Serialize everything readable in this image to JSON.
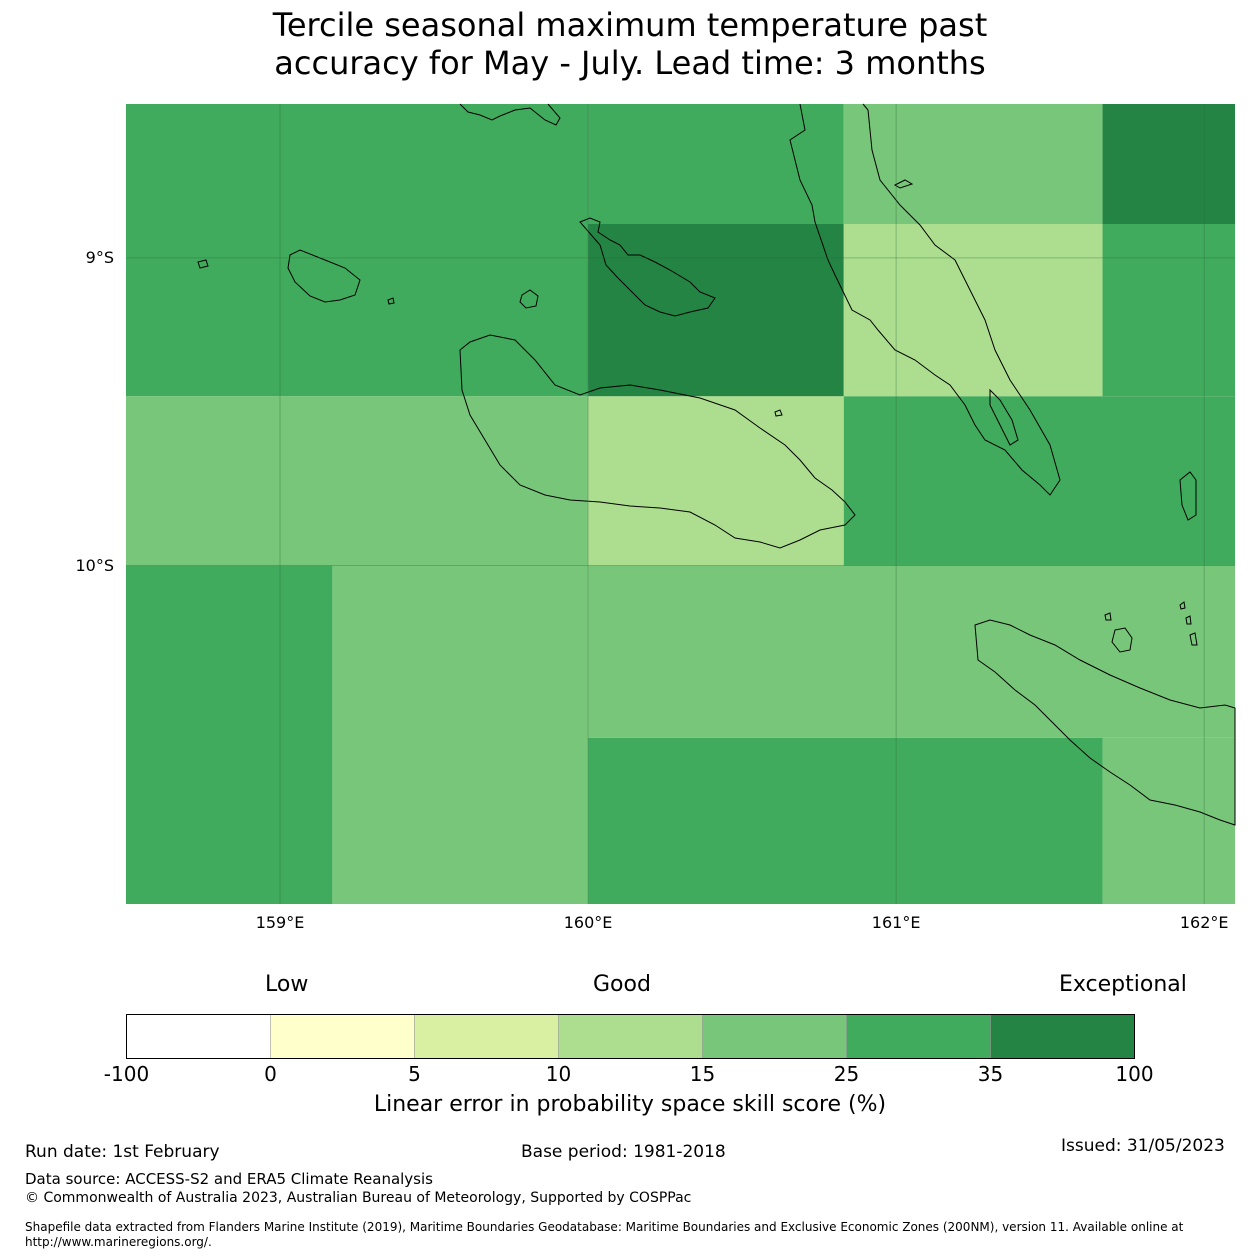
{
  "title": {
    "line1": "Tercile seasonal maximum temperature past",
    "line2": "accuracy for May - July. Lead time: 3 months"
  },
  "map": {
    "lat_labels": [
      "9°S",
      "10°S"
    ],
    "lon_labels": [
      "159°E",
      "160°E",
      "161°E",
      "162°E"
    ],
    "extent": {
      "lon_min": 158.5,
      "lon_max": 162.1,
      "lat_max": -8.5,
      "lat_min": -11.1
    },
    "skill_grid": [
      {
        "lon0": 158.5,
        "lon1": 160.0,
        "lat0": -8.5,
        "lat1": -9.45,
        "skill_class": 5
      },
      {
        "lon0": 160.0,
        "lon1": 160.83,
        "lat0": -8.5,
        "lat1": -8.89,
        "skill_class": 5
      },
      {
        "lon0": 160.0,
        "lon1": 160.83,
        "lat0": -8.89,
        "lat1": -9.45,
        "skill_class": 6
      },
      {
        "lon0": 160.83,
        "lon1": 161.67,
        "lat0": -8.5,
        "lat1": -8.89,
        "skill_class": 4
      },
      {
        "lon0": 160.83,
        "lon1": 161.67,
        "lat0": -8.89,
        "lat1": -9.45,
        "skill_class": 3
      },
      {
        "lon0": 161.67,
        "lon1": 162.1,
        "lat0": -8.5,
        "lat1": -8.89,
        "skill_class": 6
      },
      {
        "lon0": 161.67,
        "lon1": 162.1,
        "lat0": -8.89,
        "lat1": -9.45,
        "skill_class": 5
      },
      {
        "lon0": 158.5,
        "lon1": 160.0,
        "lat0": -9.45,
        "lat1": -10.0,
        "skill_class": 4
      },
      {
        "lon0": 160.0,
        "lon1": 160.83,
        "lat0": -9.45,
        "lat1": -10.0,
        "skill_class": 3
      },
      {
        "lon0": 160.83,
        "lon1": 162.1,
        "lat0": -9.45,
        "lat1": -10.0,
        "skill_class": 5
      },
      {
        "lon0": 158.5,
        "lon1": 159.17,
        "lat0": -10.0,
        "lat1": -11.1,
        "skill_class": 5
      },
      {
        "lon0": 159.17,
        "lon1": 160.0,
        "lat0": -10.0,
        "lat1": -11.1,
        "skill_class": 4
      },
      {
        "lon0": 160.0,
        "lon1": 162.1,
        "lat0": -10.0,
        "lat1": -10.56,
        "skill_class": 4
      },
      {
        "lon0": 160.0,
        "lon1": 161.67,
        "lat0": -10.56,
        "lat1": -11.1,
        "skill_class": 5
      },
      {
        "lon0": 161.67,
        "lon1": 162.1,
        "lat0": -10.56,
        "lat1": -11.1,
        "skill_class": 4
      }
    ]
  },
  "legend": {
    "category_labels": [
      "Low",
      "Good",
      "Exceptional"
    ],
    "colors": [
      "#ffffff",
      "#ffffcc",
      "#d9f0a3",
      "#addd8e",
      "#78c679",
      "#41ab5d",
      "#238443"
    ],
    "ticks": [
      "-100",
      "0",
      "5",
      "10",
      "15",
      "25",
      "35",
      "100"
    ],
    "caption": "Linear error in probability space skill score (%)"
  },
  "footer": {
    "run_date": "Run date: 1st February",
    "base_period": "Base period: 1981-2018",
    "issued": "Issued: 31/05/2023",
    "data_source": "Data source: ACCESS-S2 and ERA5 Climate Reanalysis",
    "copyright": "© Commonwealth of Australia 2023, Australian Bureau of Meteorology, Supported by COSPPac",
    "shapefile": "Shapefile data extracted from Flanders Marine Institute (2019), Maritime Boundaries Geodatabase: Maritime Boundaries and Exclusive Economic Zones (200NM), version 11. Available online at http://www.marineregions.org/."
  }
}
